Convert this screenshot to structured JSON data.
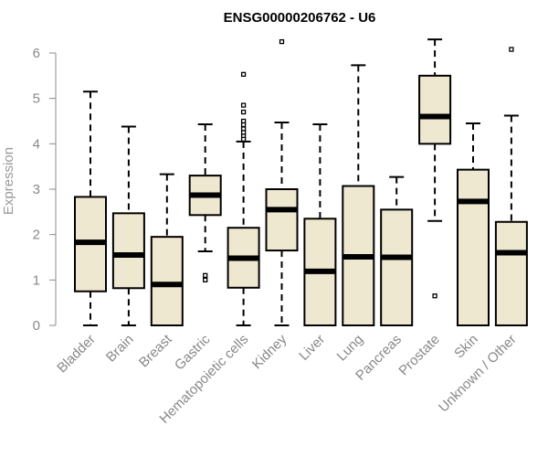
{
  "chart_data": {
    "type": "boxplot",
    "title": "ENSG00000206762 - U6",
    "xlabel": "",
    "ylabel": "Expression",
    "ylim": [
      0,
      6.3
    ],
    "yticks": [
      0,
      1,
      2,
      3,
      4,
      5,
      6
    ],
    "box_color": "#efe8d0",
    "categories": [
      "Bladder",
      "Brain",
      "Breast",
      "Gastric",
      "Hematopoietic cells",
      "Kidney",
      "Liver",
      "Lung",
      "Pancreas",
      "Prostate",
      "Skin",
      "Unknown / Other"
    ],
    "boxes": [
      {
        "category": "Bladder",
        "min": 0,
        "q1": 0.75,
        "median": 1.83,
        "q3": 2.83,
        "max": 5.15,
        "outliers": []
      },
      {
        "category": "Brain",
        "min": 0,
        "q1": 0.82,
        "median": 1.55,
        "q3": 2.47,
        "max": 4.38,
        "outliers": []
      },
      {
        "category": "Breast",
        "min": 0,
        "q1": 0,
        "median": 0.9,
        "q3": 1.95,
        "max": 3.33,
        "outliers": []
      },
      {
        "category": "Gastric",
        "min": 1.63,
        "q1": 2.43,
        "median": 2.87,
        "q3": 3.3,
        "max": 4.43,
        "outliers": [
          1.1,
          1.0
        ]
      },
      {
        "category": "Hematopoietic cells",
        "min": 0,
        "q1": 0.83,
        "median": 1.48,
        "q3": 2.15,
        "max": 4.05,
        "outliers": [
          5.53,
          4.85,
          4.7,
          4.5,
          4.42,
          4.33,
          4.25,
          4.17,
          4.1
        ]
      },
      {
        "category": "Kidney",
        "min": 0,
        "q1": 1.65,
        "median": 2.55,
        "q3": 3.0,
        "max": 4.47,
        "outliers": [
          6.25
        ]
      },
      {
        "category": "Liver",
        "min": 0,
        "q1": 0,
        "median": 1.19,
        "q3": 2.35,
        "max": 4.43,
        "outliers": []
      },
      {
        "category": "Lung",
        "min": 0,
        "q1": 0,
        "median": 1.51,
        "q3": 3.07,
        "max": 5.73,
        "outliers": []
      },
      {
        "category": "Pancreas",
        "min": 0,
        "q1": 0,
        "median": 1.5,
        "q3": 2.55,
        "max": 3.27,
        "outliers": []
      },
      {
        "category": "Prostate",
        "min": 2.3,
        "q1": 4.0,
        "median": 4.6,
        "q3": 5.5,
        "max": 6.3,
        "outliers": [
          0.65
        ]
      },
      {
        "category": "Skin",
        "min": 0,
        "q1": 0,
        "median": 2.73,
        "q3": 3.43,
        "max": 4.45,
        "outliers": []
      },
      {
        "category": "Unknown / Other",
        "min": 0,
        "q1": 0,
        "median": 1.6,
        "q3": 2.28,
        "max": 4.62,
        "outliers": [
          6.08
        ]
      }
    ]
  }
}
